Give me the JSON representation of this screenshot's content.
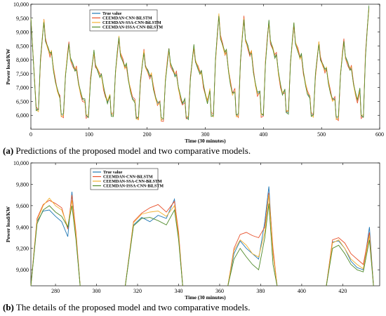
{
  "figure": {
    "caption_a_label": "(a)",
    "caption_a_text": "Predictions of the proposed model and two comparative models.",
    "caption_b_label": "(b)",
    "caption_b_text": "The details of the proposed model and two comparative models."
  },
  "chart_data": [
    {
      "type": "line",
      "xlabel": "Time (30 minutes)",
      "ylabel": "Power load/KW",
      "xlim": [
        0,
        600
      ],
      "ylim": [
        5500,
        10000
      ],
      "xticks": [
        0,
        100,
        200,
        300,
        400,
        500,
        600
      ],
      "xtick_labels": [
        "0",
        "100",
        "200",
        "300",
        "400",
        "500",
        "600"
      ],
      "yticks": [
        6000,
        6500,
        7000,
        7500,
        8000,
        8500,
        9000,
        9500,
        10000
      ],
      "ytick_labels": [
        "6,000",
        "6,500",
        "7,000",
        "7,500",
        "8,000",
        "8,500",
        "9,000",
        "9,500",
        "10,000"
      ],
      "legend_position": "top-left",
      "series": [
        {
          "name": "True value",
          "color": "#1f77b4"
        },
        {
          "name": "CEEMDAN-CNN-BiLSTM",
          "color": "#e8502a"
        },
        {
          "name": "CEEMDAN-SSA-CNN-BiLSTM",
          "color": "#f2b233"
        },
        {
          "name": "CEEMDAN-ISSA-CNN-BiLSTM",
          "color": "#4f8a2a"
        }
      ],
      "cycles": [
        {
          "min": 6200,
          "peak": 9400
        },
        {
          "min": 6000,
          "peak": 8600
        },
        {
          "min": 5950,
          "peak": 8300
        },
        {
          "min": 6000,
          "peak": 8800
        },
        {
          "min": 5900,
          "peak": 8300
        },
        {
          "min": 5850,
          "peak": 8400
        },
        {
          "min": 5900,
          "peak": 8500
        },
        {
          "min": 6000,
          "peak": 9600
        },
        {
          "min": 6000,
          "peak": 9500
        },
        {
          "min": 6000,
          "peak": 9400
        },
        {
          "min": 6100,
          "peak": 9300
        },
        {
          "min": 6000,
          "peak": 8600
        },
        {
          "min": 5900,
          "peak": 8700
        },
        {
          "min": 5950,
          "peak": 9900
        }
      ]
    },
    {
      "type": "line",
      "xlabel": "Time (30 minutes)",
      "ylabel": "Power load/KW",
      "xlim": [
        268,
        438
      ],
      "ylim": [
        8850,
        10000
      ],
      "xticks": [
        280,
        300,
        320,
        340,
        360,
        380,
        400,
        420
      ],
      "xtick_labels": [
        "280",
        "300",
        "320",
        "340",
        "360",
        "380",
        "400",
        "420"
      ],
      "yticks": [
        9000,
        9200,
        9400,
        9600,
        9800,
        10000
      ],
      "ytick_labels": [
        "9,000",
        "9,200",
        "9,400",
        "9,600",
        "9,800",
        "10,000"
      ],
      "legend_position": "top-left",
      "series": [
        {
          "name": "True value",
          "color": "#1f77b4"
        },
        {
          "name": "CEEMDAN-CNN-BiLSTM",
          "color": "#e8502a"
        },
        {
          "name": "CEEMDAN-SSA-CNN-BiLSTM",
          "color": "#f2b233"
        },
        {
          "name": "CEEMDAN-ISSA-CNN-BiLSTM",
          "color": "#4f8a2a"
        }
      ],
      "segments": [
        {
          "x": [
            268,
            271,
            274,
            277,
            280,
            283,
            286,
            288,
            290,
            292
          ],
          "values": [
            [
              8850,
              9450,
              9550,
              9560,
              9500,
              9450,
              9310,
              9730,
              9300,
              8850
            ],
            [
              8850,
              9480,
              9610,
              9650,
              9620,
              9580,
              9380,
              9700,
              9350,
              8850
            ],
            [
              8850,
              9460,
              9600,
              9670,
              9600,
              9560,
              9400,
              9650,
              9320,
              8850
            ],
            [
              8850,
              9430,
              9560,
              9600,
              9540,
              9500,
              9400,
              9600,
              9280,
              8850
            ]
          ]
        },
        {
          "x": [
            314,
            318,
            322,
            326,
            330,
            334,
            338,
            340,
            342
          ],
          "values": [
            [
              8850,
              9420,
              9490,
              9450,
              9510,
              9480,
              9660,
              9300,
              8850
            ],
            [
              8850,
              9450,
              9530,
              9580,
              9610,
              9540,
              9640,
              9350,
              8850
            ],
            [
              8850,
              9440,
              9520,
              9540,
              9550,
              9500,
              9600,
              9320,
              8850
            ],
            [
              8850,
              9410,
              9480,
              9490,
              9460,
              9420,
              9560,
              9280,
              8850
            ]
          ]
        },
        {
          "x": [
            364,
            367,
            370,
            373,
            376,
            379,
            382,
            384,
            386,
            388
          ],
          "values": [
            [
              8850,
              9150,
              9270,
              9200,
              9150,
              9100,
              9450,
              9780,
              9150,
              8850
            ],
            [
              8850,
              9200,
              9330,
              9350,
              9320,
              9300,
              9400,
              9720,
              9200,
              8850
            ],
            [
              8850,
              9180,
              9280,
              9230,
              9150,
              9120,
              9350,
              9700,
              9150,
              8850
            ],
            [
              8850,
              9100,
              9200,
              9120,
              9050,
              9000,
              9300,
              9620,
              9050,
              8850
            ]
          ]
        },
        {
          "x": [
            412,
            415,
            418,
            421,
            424,
            427,
            430,
            433,
            435
          ],
          "values": [
            [
              8850,
              9260,
              9270,
              9200,
              9080,
              9020,
              9000,
              9400,
              8850
            ],
            [
              8850,
              9280,
              9300,
              9250,
              9150,
              9100,
              9050,
              9350,
              8850
            ],
            [
              8850,
              9250,
              9280,
              9200,
              9100,
              9050,
              9010,
              9320,
              8850
            ],
            [
              8850,
              9200,
              9230,
              9150,
              9050,
              9000,
              8980,
              9280,
              8850
            ]
          ]
        }
      ]
    }
  ]
}
